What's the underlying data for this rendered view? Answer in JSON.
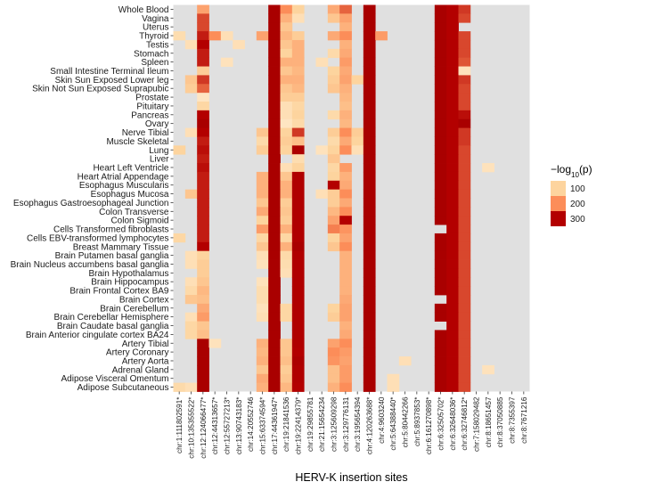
{
  "chart_data": {
    "type": "heatmap",
    "title": "",
    "xlabel": "HERV-K insertion sites",
    "ylabel": "",
    "legend": {
      "title": "-log10(p)",
      "position": "right",
      "entries": [
        "100",
        "200",
        "300"
      ],
      "colors": [
        "#fdd49e",
        "#fc8d59",
        "#b30000"
      ]
    },
    "background_color": "#e0e0e0",
    "columns": [
      "chr:1:111802591*",
      "chr:10:135355522*",
      "chr:12:124066477*",
      "chr:12:44313657*",
      "chr:12:55727213*",
      "chr:13:90743183*",
      "chr:14:20552746",
      "chr:15:63374594*",
      "chr:17:44361947*",
      "chr:19:21841536",
      "chr:19:22414379*",
      "chr:19:29855781",
      "chr:21:15654234",
      "chr:3:125609298",
      "chr:3:129776131",
      "chr:3:195654394",
      "chr:4:120263688*",
      "chr:4:9603240",
      "chr:5:64388440*",
      "chr:5:80442266",
      "chr:5:8937853*",
      "chr:6:161270898*",
      "chr:6:32505702*",
      "chr:6:32648036*",
      "chr:6:32746812*",
      "chr:7:158029482",
      "chr:8:18651457",
      "chr:8:37050885",
      "chr:8:7355397",
      "chr:8:7671216"
    ],
    "rows": [
      "Whole Blood",
      "Vagina",
      "Uterus",
      "Thyroid",
      "Testis",
      "Stomach",
      "Spleen",
      "Small Intestine Terminal Ileum",
      "Skin Sun Exposed Lower leg",
      "Skin Not Sun Exposed Suprapubic",
      "Prostate",
      "Pituitary",
      "Pancreas",
      "Ovary",
      "Nerve Tibial",
      "Muscle Skeletal",
      "Lung",
      "Liver",
      "Heart Left Ventricle",
      "Heart Atrial Appendage",
      "Esophagus Muscularis",
      "Esophagus Mucosa",
      "Esophagus Gastroesophageal Junction",
      "Colon Transverse",
      "Colon Sigmoid",
      "Cells Transformed fibroblasts",
      "Cells EBV-transformed lymphocytes",
      "Breast Mammary Tissue",
      "Brain Putamen basal ganglia",
      "Brain Nucleus accumbens basal ganglia",
      "Brain Hypothalamus",
      "Brain Hippocampus",
      "Brain Frontal Cortex BA9",
      "Brain Cortex",
      "Brain Cerebellum",
      "Brain Cerebellar Hemisphere",
      "Brain Caudate basal ganglia",
      "Brain Anterior cingulate cortex BA24",
      "Artery Tibial",
      "Artery Coronary",
      "Artery Aorta",
      "Adrenal Gland",
      "Adipose Visceral Omentum",
      "Adipose Subcutaneous"
    ],
    "values": [
      [
        0,
        0,
        170,
        0,
        0,
        0,
        0,
        0,
        330,
        200,
        100,
        0,
        0,
        160,
        230,
        0,
        330,
        0,
        0,
        0,
        0,
        0,
        330,
        300,
        260,
        0,
        0,
        0,
        0,
        0
      ],
      [
        0,
        0,
        250,
        0,
        0,
        0,
        0,
        0,
        330,
        150,
        60,
        0,
        0,
        120,
        170,
        0,
        330,
        0,
        0,
        0,
        0,
        0,
        330,
        300,
        250,
        0,
        0,
        0,
        0,
        0
      ],
      [
        0,
        0,
        250,
        0,
        0,
        0,
        0,
        0,
        330,
        120,
        0,
        0,
        0,
        0,
        150,
        0,
        330,
        0,
        0,
        0,
        0,
        0,
        330,
        300,
        0,
        0,
        0,
        0,
        0,
        0
      ],
      [
        70,
        0,
        280,
        200,
        60,
        0,
        0,
        170,
        330,
        140,
        110,
        0,
        0,
        160,
        200,
        0,
        330,
        180,
        0,
        0,
        0,
        0,
        330,
        300,
        250,
        0,
        0,
        0,
        0,
        0
      ],
      [
        0,
        60,
        300,
        0,
        0,
        60,
        0,
        0,
        330,
        120,
        150,
        0,
        0,
        0,
        150,
        0,
        330,
        0,
        0,
        0,
        0,
        0,
        330,
        300,
        250,
        0,
        0,
        0,
        0,
        0
      ],
      [
        0,
        0,
        280,
        0,
        0,
        0,
        0,
        0,
        330,
        100,
        150,
        0,
        0,
        80,
        160,
        0,
        330,
        0,
        0,
        0,
        0,
        0,
        330,
        300,
        250,
        0,
        0,
        0,
        0,
        0
      ],
      [
        0,
        0,
        280,
        0,
        50,
        0,
        0,
        0,
        330,
        150,
        150,
        0,
        60,
        0,
        180,
        0,
        330,
        0,
        0,
        0,
        0,
        0,
        330,
        300,
        240,
        0,
        0,
        0,
        0,
        0
      ],
      [
        0,
        0,
        110,
        0,
        0,
        0,
        0,
        0,
        330,
        120,
        140,
        0,
        0,
        100,
        160,
        0,
        330,
        0,
        0,
        0,
        0,
        0,
        330,
        300,
        50,
        0,
        0,
        0,
        0,
        0
      ],
      [
        0,
        120,
        260,
        0,
        0,
        0,
        0,
        0,
        330,
        150,
        150,
        0,
        0,
        110,
        170,
        100,
        330,
        0,
        0,
        0,
        0,
        0,
        330,
        300,
        260,
        0,
        0,
        0,
        0,
        0
      ],
      [
        0,
        110,
        230,
        0,
        0,
        0,
        0,
        0,
        330,
        120,
        140,
        0,
        0,
        120,
        150,
        0,
        330,
        0,
        0,
        0,
        0,
        0,
        330,
        300,
        250,
        0,
        0,
        0,
        0,
        0
      ],
      [
        0,
        0,
        40,
        0,
        0,
        0,
        0,
        0,
        330,
        110,
        110,
        0,
        0,
        0,
        140,
        0,
        330,
        0,
        0,
        0,
        0,
        0,
        330,
        300,
        250,
        0,
        0,
        0,
        0,
        0
      ],
      [
        0,
        0,
        90,
        0,
        0,
        0,
        0,
        0,
        330,
        60,
        90,
        0,
        0,
        0,
        130,
        0,
        330,
        0,
        0,
        0,
        0,
        0,
        330,
        300,
        250,
        0,
        0,
        0,
        0,
        0
      ],
      [
        0,
        0,
        300,
        0,
        0,
        0,
        0,
        0,
        330,
        60,
        100,
        0,
        0,
        80,
        150,
        0,
        330,
        0,
        0,
        0,
        0,
        0,
        330,
        300,
        290,
        0,
        0,
        0,
        0,
        0
      ],
      [
        0,
        0,
        330,
        0,
        0,
        0,
        0,
        0,
        330,
        40,
        80,
        0,
        0,
        0,
        140,
        0,
        330,
        0,
        0,
        0,
        0,
        0,
        330,
        300,
        330,
        0,
        0,
        0,
        0,
        0
      ],
      [
        0,
        60,
        300,
        0,
        0,
        0,
        0,
        120,
        330,
        100,
        260,
        0,
        0,
        110,
        200,
        110,
        330,
        0,
        0,
        0,
        0,
        0,
        330,
        300,
        260,
        0,
        0,
        0,
        0,
        0
      ],
      [
        0,
        0,
        280,
        0,
        0,
        0,
        0,
        80,
        330,
        110,
        130,
        0,
        0,
        80,
        160,
        100,
        330,
        0,
        0,
        0,
        0,
        0,
        330,
        300,
        260,
        0,
        0,
        0,
        0,
        0
      ],
      [
        100,
        0,
        290,
        0,
        0,
        0,
        0,
        110,
        330,
        100,
        320,
        0,
        50,
        100,
        200,
        60,
        330,
        0,
        0,
        0,
        0,
        0,
        330,
        300,
        250,
        0,
        0,
        0,
        0,
        0
      ],
      [
        0,
        0,
        280,
        0,
        0,
        0,
        0,
        0,
        330,
        0,
        70,
        0,
        0,
        120,
        0,
        0,
        330,
        0,
        0,
        0,
        0,
        0,
        330,
        300,
        250,
        0,
        0,
        0,
        0,
        0
      ],
      [
        0,
        0,
        290,
        0,
        0,
        0,
        0,
        0,
        330,
        60,
        100,
        0,
        0,
        90,
        180,
        0,
        330,
        0,
        0,
        0,
        0,
        0,
        330,
        300,
        250,
        0,
        50,
        0,
        0,
        0
      ],
      [
        0,
        0,
        280,
        0,
        0,
        0,
        0,
        150,
        330,
        120,
        310,
        0,
        0,
        100,
        150,
        0,
        330,
        0,
        0,
        0,
        0,
        0,
        330,
        300,
        250,
        0,
        0,
        0,
        0,
        0
      ],
      [
        0,
        0,
        280,
        0,
        0,
        0,
        0,
        150,
        330,
        150,
        310,
        0,
        0,
        300,
        160,
        0,
        330,
        0,
        0,
        0,
        0,
        0,
        330,
        300,
        250,
        0,
        0,
        0,
        0,
        0
      ],
      [
        0,
        120,
        280,
        0,
        0,
        0,
        0,
        150,
        330,
        150,
        310,
        0,
        60,
        110,
        200,
        0,
        330,
        0,
        0,
        0,
        0,
        0,
        330,
        300,
        250,
        0,
        0,
        0,
        0,
        0
      ],
      [
        0,
        0,
        280,
        0,
        0,
        0,
        0,
        120,
        330,
        110,
        310,
        0,
        0,
        110,
        160,
        0,
        330,
        0,
        0,
        0,
        0,
        0,
        330,
        300,
        250,
        0,
        0,
        0,
        0,
        0
      ],
      [
        0,
        0,
        280,
        0,
        0,
        0,
        0,
        160,
        330,
        120,
        310,
        0,
        0,
        140,
        200,
        0,
        330,
        0,
        0,
        0,
        0,
        0,
        330,
        300,
        250,
        0,
        0,
        0,
        0,
        0
      ],
      [
        0,
        0,
        280,
        0,
        0,
        0,
        0,
        100,
        330,
        110,
        310,
        0,
        0,
        170,
        300,
        0,
        330,
        0,
        0,
        0,
        0,
        0,
        330,
        300,
        250,
        0,
        0,
        0,
        0,
        0
      ],
      [
        0,
        0,
        280,
        0,
        0,
        0,
        0,
        180,
        330,
        150,
        310,
        0,
        0,
        210,
        190,
        0,
        330,
        0,
        0,
        0,
        0,
        0,
        0,
        300,
        250,
        0,
        0,
        0,
        0,
        0
      ],
      [
        90,
        0,
        280,
        0,
        0,
        0,
        0,
        90,
        330,
        90,
        310,
        0,
        0,
        100,
        170,
        0,
        330,
        0,
        0,
        0,
        0,
        0,
        330,
        300,
        250,
        0,
        0,
        0,
        0,
        0
      ],
      [
        0,
        0,
        300,
        0,
        0,
        0,
        0,
        120,
        330,
        150,
        330,
        0,
        0,
        120,
        200,
        0,
        330,
        0,
        0,
        0,
        0,
        0,
        330,
        300,
        250,
        0,
        0,
        0,
        0,
        0
      ],
      [
        0,
        60,
        100,
        0,
        0,
        0,
        0,
        60,
        330,
        80,
        310,
        0,
        0,
        0,
        150,
        0,
        330,
        0,
        0,
        0,
        0,
        0,
        330,
        300,
        250,
        0,
        0,
        0,
        0,
        0
      ],
      [
        0,
        60,
        110,
        0,
        0,
        0,
        0,
        50,
        330,
        70,
        310,
        0,
        0,
        0,
        150,
        0,
        330,
        0,
        0,
        0,
        0,
        0,
        330,
        300,
        250,
        0,
        0,
        0,
        0,
        0
      ],
      [
        0,
        0,
        110,
        0,
        0,
        0,
        0,
        0,
        330,
        60,
        310,
        0,
        0,
        0,
        150,
        0,
        330,
        0,
        0,
        0,
        0,
        0,
        330,
        300,
        250,
        0,
        0,
        0,
        0,
        0
      ],
      [
        0,
        60,
        120,
        0,
        0,
        0,
        0,
        50,
        330,
        0,
        310,
        0,
        0,
        0,
        150,
        0,
        330,
        0,
        0,
        0,
        0,
        0,
        330,
        300,
        250,
        0,
        0,
        0,
        0,
        0
      ],
      [
        0,
        80,
        140,
        0,
        0,
        0,
        0,
        70,
        330,
        0,
        310,
        0,
        0,
        0,
        150,
        0,
        330,
        0,
        0,
        0,
        0,
        0,
        330,
        300,
        250,
        0,
        0,
        0,
        0,
        0
      ],
      [
        0,
        120,
        130,
        0,
        0,
        0,
        0,
        70,
        330,
        0,
        310,
        0,
        0,
        0,
        160,
        0,
        330,
        0,
        0,
        0,
        0,
        0,
        0,
        300,
        250,
        0,
        0,
        0,
        0,
        0
      ],
      [
        0,
        0,
        160,
        0,
        0,
        0,
        0,
        50,
        330,
        90,
        310,
        0,
        0,
        100,
        170,
        0,
        330,
        0,
        0,
        0,
        0,
        0,
        330,
        300,
        250,
        0,
        0,
        0,
        0,
        0
      ],
      [
        0,
        60,
        180,
        0,
        0,
        0,
        0,
        60,
        330,
        90,
        310,
        0,
        0,
        110,
        170,
        0,
        330,
        0,
        0,
        0,
        0,
        0,
        330,
        300,
        250,
        0,
        0,
        0,
        0,
        0
      ],
      [
        0,
        90,
        120,
        0,
        0,
        0,
        0,
        0,
        330,
        0,
        310,
        0,
        0,
        0,
        150,
        0,
        330,
        0,
        0,
        0,
        0,
        0,
        0,
        300,
        250,
        0,
        0,
        0,
        0,
        0
      ],
      [
        0,
        90,
        130,
        0,
        0,
        0,
        0,
        0,
        330,
        0,
        310,
        0,
        0,
        0,
        160,
        0,
        330,
        0,
        0,
        0,
        0,
        0,
        330,
        300,
        250,
        0,
        0,
        0,
        0,
        0
      ],
      [
        0,
        0,
        330,
        50,
        0,
        0,
        0,
        150,
        330,
        120,
        310,
        0,
        0,
        170,
        200,
        0,
        330,
        0,
        0,
        0,
        0,
        0,
        330,
        300,
        250,
        0,
        0,
        0,
        0,
        0
      ],
      [
        0,
        0,
        330,
        0,
        0,
        0,
        0,
        140,
        330,
        120,
        300,
        0,
        0,
        200,
        180,
        0,
        330,
        0,
        0,
        0,
        0,
        0,
        330,
        300,
        250,
        0,
        0,
        0,
        0,
        0
      ],
      [
        0,
        0,
        330,
        0,
        0,
        0,
        0,
        150,
        330,
        130,
        320,
        0,
        0,
        190,
        170,
        0,
        330,
        0,
        0,
        60,
        0,
        0,
        330,
        300,
        250,
        0,
        0,
        0,
        0,
        0
      ],
      [
        0,
        0,
        330,
        0,
        0,
        0,
        0,
        120,
        330,
        110,
        310,
        0,
        0,
        130,
        180,
        0,
        330,
        0,
        0,
        0,
        0,
        0,
        330,
        300,
        250,
        0,
        50,
        0,
        0,
        0
      ],
      [
        0,
        0,
        330,
        0,
        0,
        0,
        0,
        160,
        330,
        120,
        310,
        0,
        0,
        130,
        180,
        0,
        330,
        0,
        60,
        0,
        0,
        0,
        330,
        300,
        250,
        0,
        0,
        0,
        0,
        0
      ],
      [
        80,
        60,
        330,
        0,
        0,
        0,
        0,
        150,
        330,
        140,
        300,
        0,
        0,
        150,
        200,
        0,
        330,
        0,
        60,
        0,
        0,
        0,
        330,
        300,
        250,
        0,
        0,
        0,
        0,
        0
      ]
    ]
  },
  "legend_labels": {
    "title_prefix": "−log",
    "title_sub": "10",
    "title_suffix": "(p)"
  }
}
